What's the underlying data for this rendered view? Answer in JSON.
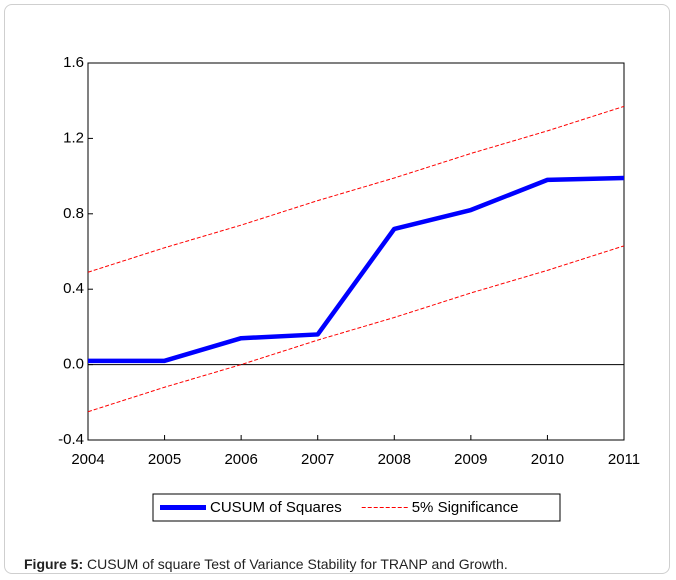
{
  "chart_data": {
    "type": "line",
    "x": [
      2004,
      2005,
      2006,
      2007,
      2008,
      2009,
      2010,
      2011
    ],
    "xlim": [
      2004,
      2011
    ],
    "xticks": [
      2004,
      2005,
      2006,
      2007,
      2008,
      2009,
      2010,
      2011
    ],
    "ylim": [
      -0.4,
      1.6
    ],
    "yticks": [
      -0.4,
      {
        "value": 0,
        "label": "0.0"
      },
      0.4,
      0.8,
      1.2,
      1.6
    ],
    "series": [
      {
        "name": "CUSUM of Squares",
        "color": "#0000ff",
        "values": [
          0.02,
          0.02,
          0.14,
          0.16,
          0.72,
          0.82,
          0.98,
          0.99
        ]
      },
      {
        "name": "5% Significance",
        "color": "#ff0000",
        "dashed": true,
        "upper": [
          0.49,
          0.62,
          0.74,
          0.87,
          0.99,
          1.12,
          1.24,
          1.37
        ],
        "lower": [
          -0.25,
          -0.12,
          0.0,
          0.13,
          0.25,
          0.38,
          0.5,
          0.63
        ]
      }
    ]
  },
  "caption": {
    "label": "Figure 5:",
    "text": " CUSUM of square Test of Variance Stability for TRANP and Growth."
  }
}
